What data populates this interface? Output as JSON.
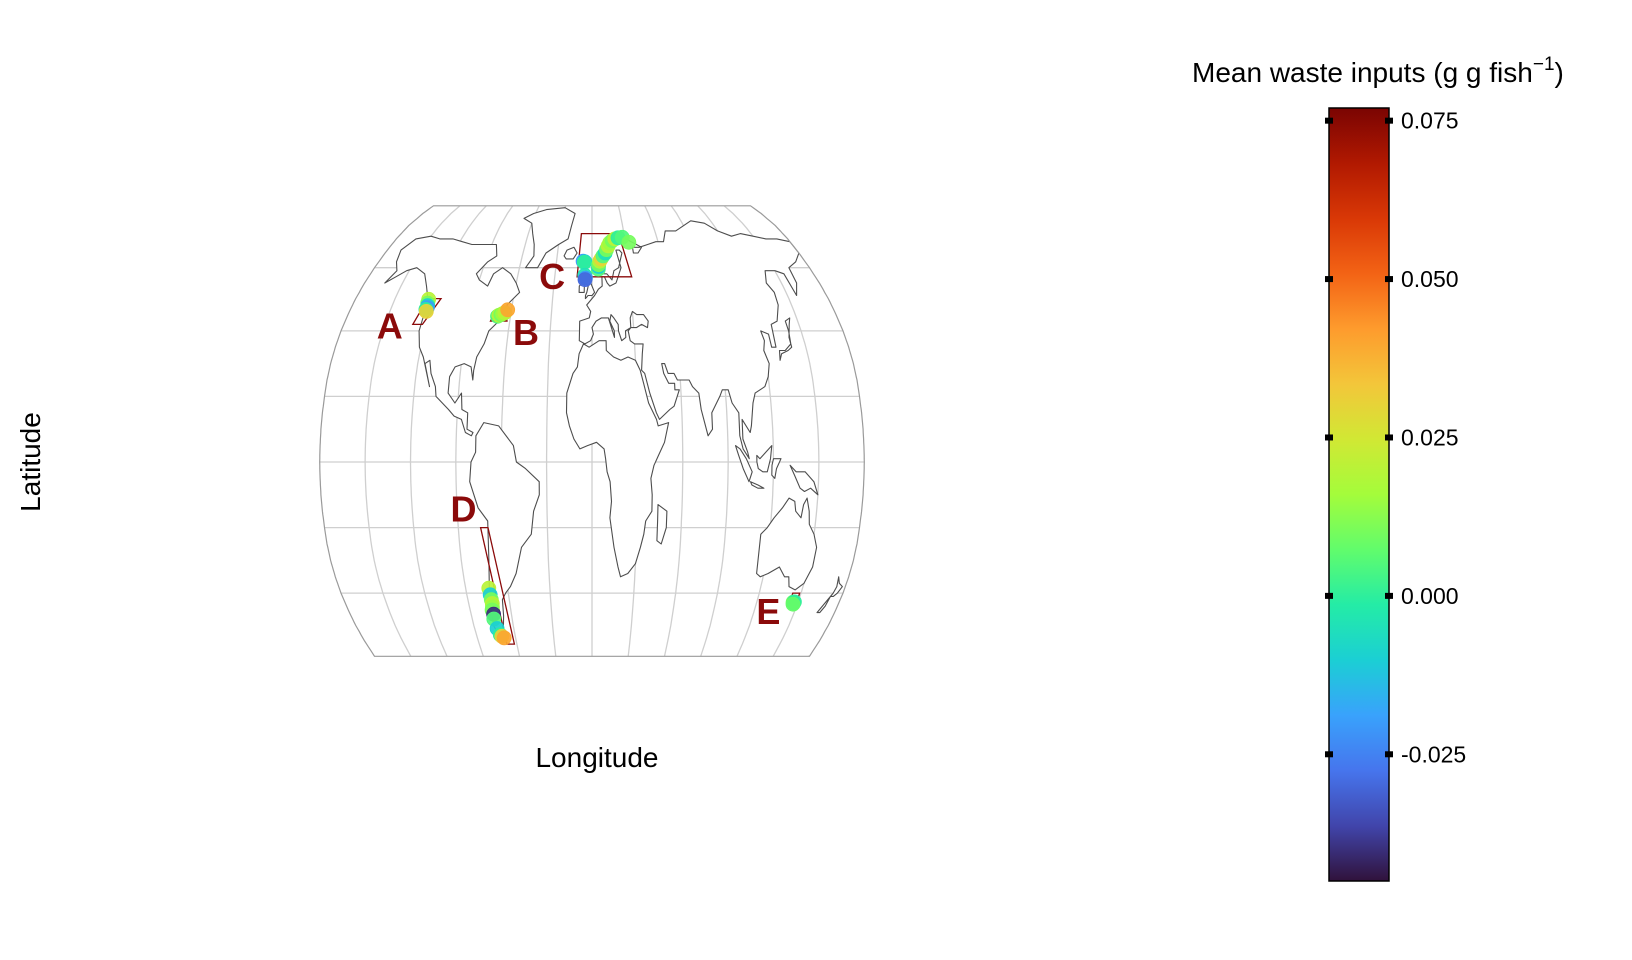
{
  "axes": {
    "xlabel": "Longitude",
    "ylabel": "Latitude"
  },
  "legend": {
    "title_main": "Mean waste inputs (g g fish",
    "title_sup": "−1",
    "title_close": ")",
    "ticks": [
      0.075,
      0.05,
      0.025,
      0.0,
      -0.025
    ],
    "tick_labels": [
      "0.075",
      "0.050",
      "0.025",
      "0.000",
      "-0.025"
    ],
    "range": [
      -0.045,
      0.077
    ],
    "colormap": [
      "#30123b",
      "#4145ab",
      "#4675ed",
      "#39a2fc",
      "#1bcfd4",
      "#24eca6",
      "#61fc6c",
      "#a4fc3b",
      "#d1e834",
      "#f3c63a",
      "#fe9b2d",
      "#f36315",
      "#d93806",
      "#b11901",
      "#7a0402"
    ]
  },
  "projection": "Robinson",
  "regions": [
    {
      "label": "A",
      "box": [
        [
          -125,
          50
        ],
        [
          -115,
          50
        ],
        [
          -123,
          42
        ],
        [
          -130,
          42
        ]
      ]
    },
    {
      "label": "B",
      "box": [
        [
          -72,
          46
        ],
        [
          -64,
          46
        ],
        [
          -62,
          43
        ],
        [
          -74,
          43
        ]
      ]
    },
    {
      "label": "C",
      "box": [
        [
          -10,
          72
        ],
        [
          25,
          72
        ],
        [
          32,
          57
        ],
        [
          -12,
          57
        ]
      ]
    },
    {
      "label": "D",
      "box": [
        [
          -75,
          -20
        ],
        [
          -70,
          -20
        ],
        [
          -62,
          -56
        ],
        [
          -68,
          -56
        ]
      ]
    },
    {
      "label": "E",
      "box": [
        [
          144,
          -40
        ],
        [
          149,
          -40
        ],
        [
          149,
          -44
        ],
        [
          144,
          -44
        ]
      ]
    }
  ],
  "chart_data": {
    "type": "scatter",
    "title": "",
    "xlabel": "Longitude",
    "ylabel": "Latitude",
    "color_variable": "Mean waste inputs (g g fish⁻¹)",
    "series": [
      {
        "name": "A",
        "points": [
          {
            "lon": -124.2,
            "lat": 49.8,
            "v": 0.02
          },
          {
            "lon": -124.0,
            "lat": 48.6,
            "v": 0.01
          },
          {
            "lon": -123.4,
            "lat": 47.8,
            "v": -0.01
          },
          {
            "lon": -123.2,
            "lat": 47.2,
            "v": -0.02
          },
          {
            "lon": -123.8,
            "lat": 46.6,
            "v": 0.0
          },
          {
            "lon": -123.0,
            "lat": 46.0,
            "v": 0.03
          }
        ]
      },
      {
        "name": "B",
        "points": [
          {
            "lon": -69.5,
            "lat": 44.5,
            "v": 0.005
          },
          {
            "lon": -68.5,
            "lat": 44.8,
            "v": 0.02
          },
          {
            "lon": -67.2,
            "lat": 45.0,
            "v": 0.01
          },
          {
            "lon": -66.0,
            "lat": 45.3,
            "v": 0.015
          },
          {
            "lon": -64.5,
            "lat": 45.6,
            "v": 0.02
          },
          {
            "lon": -62.8,
            "lat": 46.5,
            "v": 0.04
          }
        ]
      },
      {
        "name": "C",
        "points": [
          {
            "lon": -7.5,
            "lat": 62.2,
            "v": -0.02
          },
          {
            "lon": -6.0,
            "lat": 62.0,
            "v": -0.01
          },
          {
            "lon": -6.5,
            "lat": 61.8,
            "v": 0.0
          },
          {
            "lon": -5.8,
            "lat": 57.5,
            "v": -0.005
          },
          {
            "lon": -5.3,
            "lat": 56.6,
            "v": -0.02
          },
          {
            "lon": -5.6,
            "lat": 56.1,
            "v": -0.03
          },
          {
            "lon": 5.2,
            "lat": 59.5,
            "v": 0.005
          },
          {
            "lon": 5.4,
            "lat": 60.4,
            "v": -0.01
          },
          {
            "lon": 5.6,
            "lat": 61.0,
            "v": 0.01
          },
          {
            "lon": 6.5,
            "lat": 62.2,
            "v": 0.02
          },
          {
            "lon": 7.8,
            "lat": 63.0,
            "v": 0.03
          },
          {
            "lon": 9.5,
            "lat": 64.0,
            "v": 0.005
          },
          {
            "lon": 11.5,
            "lat": 65.0,
            "v": -0.005
          },
          {
            "lon": 12.8,
            "lat": 66.2,
            "v": 0.01
          },
          {
            "lon": 14.5,
            "lat": 67.5,
            "v": 0.02
          },
          {
            "lon": 16.0,
            "lat": 68.6,
            "v": 0.015
          },
          {
            "lon": 18.5,
            "lat": 69.4,
            "v": 0.01
          },
          {
            "lon": 21.0,
            "lat": 70.0,
            "v": 0.02
          },
          {
            "lon": 24.0,
            "lat": 70.4,
            "v": 0.0
          },
          {
            "lon": 28.0,
            "lat": 70.6,
            "v": 0.005
          },
          {
            "lon": 33.5,
            "lat": 68.8,
            "v": 0.01
          }
        ]
      },
      {
        "name": "D",
        "points": [
          {
            "lon": -73.5,
            "lat": -38.5,
            "v": 0.02
          },
          {
            "lon": -73.2,
            "lat": -40.5,
            "v": -0.01
          },
          {
            "lon": -73.0,
            "lat": -42.0,
            "v": 0.01
          },
          {
            "lon": -72.8,
            "lat": -43.2,
            "v": 0.02
          },
          {
            "lon": -73.2,
            "lat": -44.3,
            "v": 0.015
          },
          {
            "lon": -73.8,
            "lat": -45.2,
            "v": 0.01
          },
          {
            "lon": -73.3,
            "lat": -46.5,
            "v": -0.04
          },
          {
            "lon": -73.8,
            "lat": -48.0,
            "v": 0.005
          },
          {
            "lon": -72.8,
            "lat": -51.0,
            "v": -0.01
          },
          {
            "lon": -71.5,
            "lat": -53.0,
            "v": 0.0
          },
          {
            "lon": -70.5,
            "lat": -53.5,
            "v": 0.03
          },
          {
            "lon": -69.0,
            "lat": -54.0,
            "v": 0.04
          }
        ]
      },
      {
        "name": "E",
        "points": [
          {
            "lon": 146.5,
            "lat": -42.8,
            "v": 0.01
          },
          {
            "lon": 147.1,
            "lat": -43.1,
            "v": -0.005
          },
          {
            "lon": 147.4,
            "lat": -42.7,
            "v": 0.0
          },
          {
            "lon": 146.9,
            "lat": -43.4,
            "v": 0.008
          }
        ]
      }
    ]
  }
}
